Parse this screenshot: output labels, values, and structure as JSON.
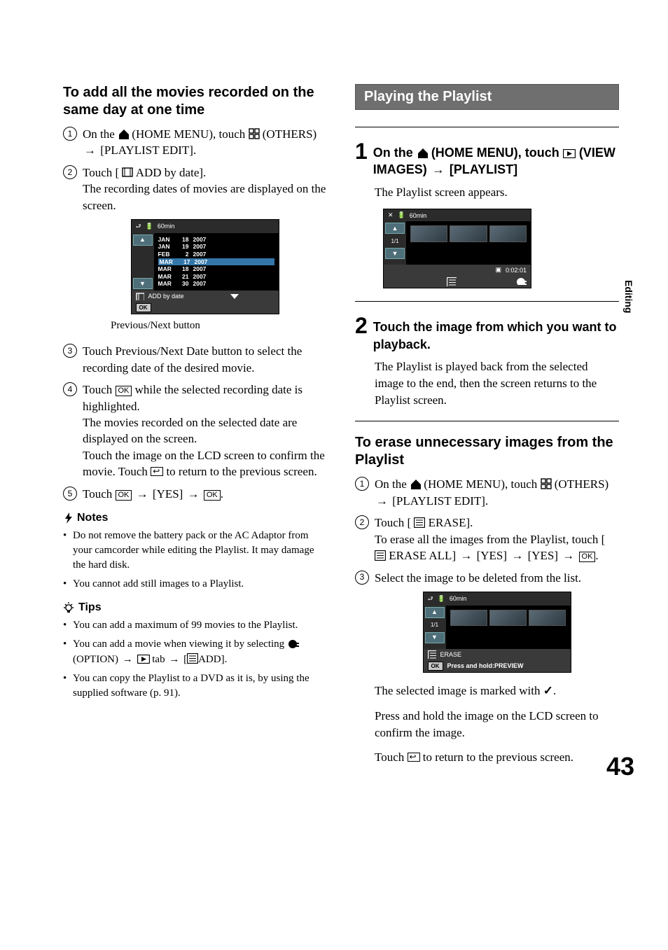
{
  "sideTab": "Editing",
  "pageNumber": "43",
  "left": {
    "heading": "To add all the movies recorded on the same day at one time",
    "steps": {
      "s1a": "On the ",
      "s1b": " (HOME MENU), touch ",
      "s1c": " (OTHERS) ",
      "s1d": " [PLAYLIST EDIT].",
      "s2a": "Touch [",
      "s2b": " ADD by date].",
      "s2c": "The recording dates of movies are displayed on the screen.",
      "s3": "Touch Previous/Next Date button to select the recording date of the desired movie.",
      "s4a": "Touch ",
      "s4b": " while the selected recording date is highlighted.",
      "s4c": "The movies recorded on the selected date are displayed on the screen.",
      "s4d": "Touch the image on the LCD screen to confirm the movie. Touch ",
      "s4e": " to return to the previous screen.",
      "s5a": "Touch ",
      "s5b": " [YES] ",
      "s5c": "."
    },
    "caption": "Previous/Next button",
    "notesLabel": "Notes",
    "notes": {
      "n1": "Do not remove the battery pack or the AC Adaptor from your camcorder while editing the Playlist. It may damage the hard disk.",
      "n2": "You cannot add still images to a Playlist."
    },
    "tipsLabel": "Tips",
    "tips": {
      "t1": "You can add a maximum of 99 movies to the Playlist.",
      "t2a": "You can add a movie when viewing it by selecting ",
      "t2b": "(OPTION) ",
      "t2c": " tab ",
      "t2d": "ADD].",
      "t3": "You can copy the Playlist to a DVD as it is, by using the supplied software (p. 91)."
    },
    "shot1": {
      "battery": "60min",
      "dates": [
        {
          "m": "JAN",
          "d": "18",
          "y": "2007"
        },
        {
          "m": "JAN",
          "d": "19",
          "y": "2007"
        },
        {
          "m": "FEB",
          "d": "2",
          "y": "2007"
        },
        {
          "m": "MAR",
          "d": "17",
          "y": "2007"
        },
        {
          "m": "MAR",
          "d": "18",
          "y": "2007"
        },
        {
          "m": "MAR",
          "d": "21",
          "y": "2007"
        },
        {
          "m": "MAR",
          "d": "30",
          "y": "2007"
        }
      ],
      "barLabel": "ADD by date",
      "ok": "OK"
    }
  },
  "right": {
    "sectionTitle": "Playing the Playlist",
    "step1": {
      "a": "On the ",
      "b": " (HOME MENU), touch ",
      "c": " (VIEW IMAGES) ",
      "d": " [PLAYLIST]"
    },
    "step1Body": "The Playlist screen appears.",
    "step2": "Touch the image from which you want to playback.",
    "step2Body": "The Playlist is played back from the selected image to the end, then the screen returns to the Playlist screen.",
    "eraseHeading": "To erase unnecessary images from the Playlist",
    "erase": {
      "s1a": "On the ",
      "s1b": " (HOME MENU), touch ",
      "s1c": " (OTHERS) ",
      "s1d": " [PLAYLIST EDIT].",
      "s2a": "Touch [",
      "s2b": "ERASE].",
      "s2c": "To erase all the images from the Playlist, touch [",
      "s2d": "ERASE ALL] ",
      "s2e": " [YES] ",
      "s2f": " [YES] ",
      "s2g": ".",
      "s3": "Select the image to be deleted from the list."
    },
    "afterShot": {
      "p1a": "The selected image is marked with ",
      "p1b": ".",
      "p2": "Press and hold the image on the LCD screen to confirm the image.",
      "p3a": "Touch ",
      "p3b": " to return to the previous screen."
    },
    "shot2": {
      "battery": "60min",
      "page": "1/1",
      "time": "0:02:01"
    },
    "shot3": {
      "battery": "60min",
      "page": "1/1",
      "bar": "ERASE",
      "hint": "Press and hold:PREVIEW",
      "ok": "OK"
    }
  },
  "glyph": {
    "arrow": "→",
    "ok": "OK",
    "check": "✓"
  }
}
